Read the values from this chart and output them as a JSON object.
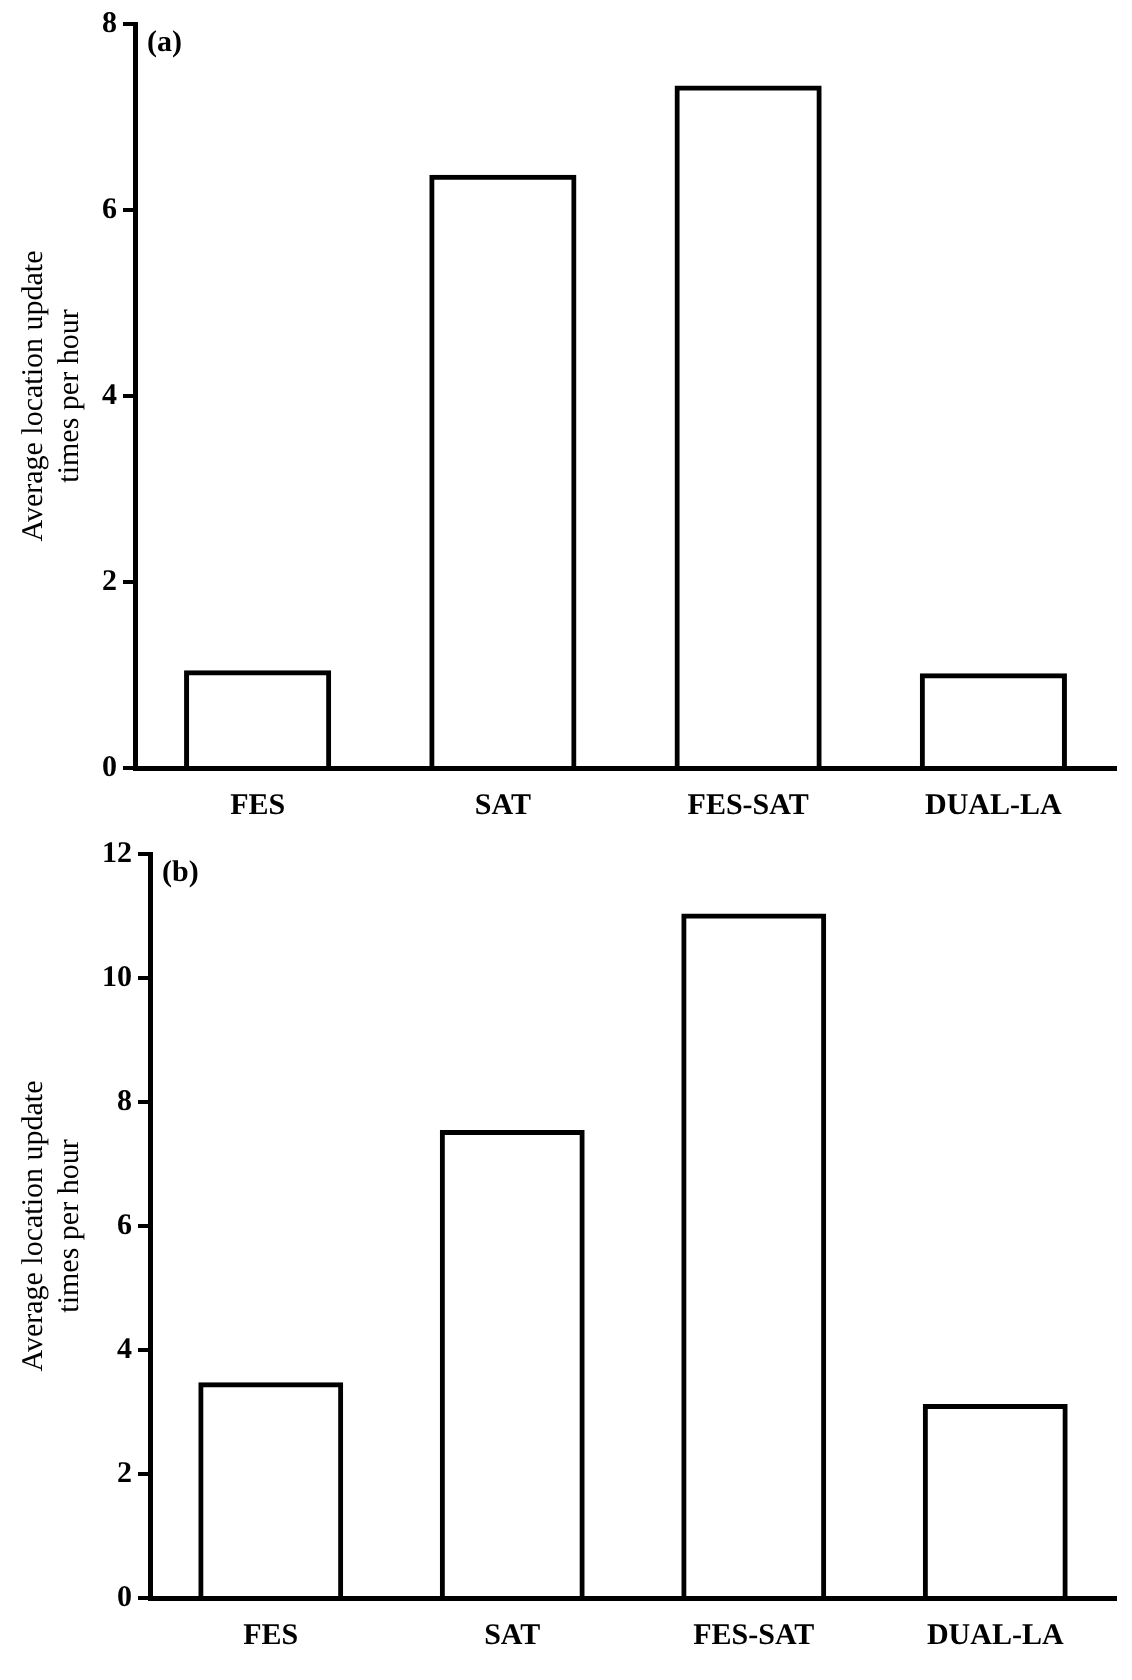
{
  "chart_data": [
    {
      "type": "bar",
      "ylabel": "Average location update times per hour",
      "categories": [
        "FES",
        "SAT",
        "FES-SAT",
        "DUAL-LA"
      ],
      "values": [
        1.05,
        6.38,
        7.34,
        1.02
      ],
      "color": "#000000",
      "ylim": [
        0,
        8
      ],
      "yticks": [
        0,
        2,
        4,
        6,
        8
      ],
      "grid": false,
      "legend": false,
      "annotations": [
        "(a)"
      ]
    },
    {
      "type": "bar",
      "ylabel": "Average location update times per hour",
      "categories": [
        "FES",
        "SAT",
        "FES-SAT",
        "DUAL-LA"
      ],
      "values": [
        3.48,
        7.55,
        11.04,
        3.13
      ],
      "color": "#000000",
      "ylim": [
        0,
        12
      ],
      "yticks": [
        0,
        2,
        4,
        6,
        8,
        10,
        12
      ],
      "grid": false,
      "legend": false,
      "annotations": [
        "(b)"
      ]
    }
  ]
}
